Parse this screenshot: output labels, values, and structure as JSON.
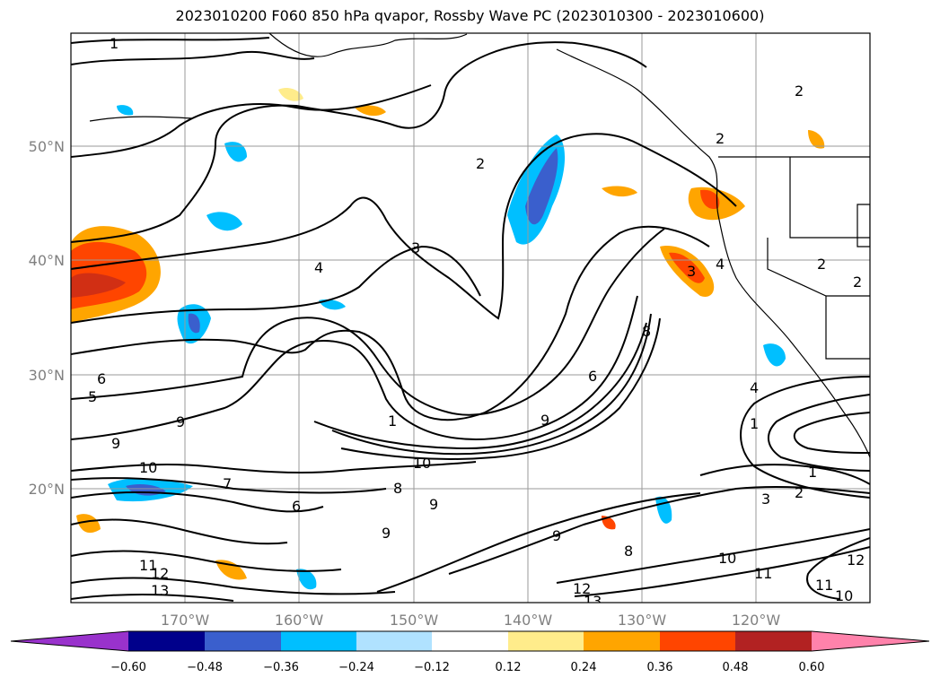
{
  "title": "2023010200 F060 850 hPa qvapor, Rossby Wave PC (2023010300 - 2023010600)",
  "lat_labels": [
    "50°N",
    "40°N",
    "30°N",
    "20°N"
  ],
  "lon_labels": [
    "170°W",
    "160°W",
    "150°W",
    "140°W",
    "130°W",
    "120°W"
  ],
  "colorbar": {
    "tick_labels": [
      "−0.60",
      "−0.48",
      "−0.36",
      "−0.24",
      "−0.12",
      "0.12",
      "0.24",
      "0.36",
      "0.48",
      "0.60"
    ],
    "colors": [
      "#9932cc",
      "#00008b",
      "#3a5fcd",
      "#00bfff",
      "#b0e2ff",
      "#ffffff",
      "#ffec8b",
      "#ffa500",
      "#ff4500",
      "#b22222",
      "#ff82ab"
    ]
  },
  "contour_labels": [
    "1",
    "2",
    "2",
    "2",
    "2",
    "2",
    "3",
    "4",
    "4",
    "5",
    "6",
    "6",
    "8",
    "9",
    "9",
    "9",
    "10",
    "10",
    "10",
    "11",
    "11",
    "12",
    "12",
    "13",
    "13",
    "1",
    "1",
    "2",
    "3",
    "7",
    "8",
    "9",
    "9",
    "1",
    "4",
    "3",
    "6",
    "10",
    "8",
    "9",
    "11",
    "12"
  ]
}
